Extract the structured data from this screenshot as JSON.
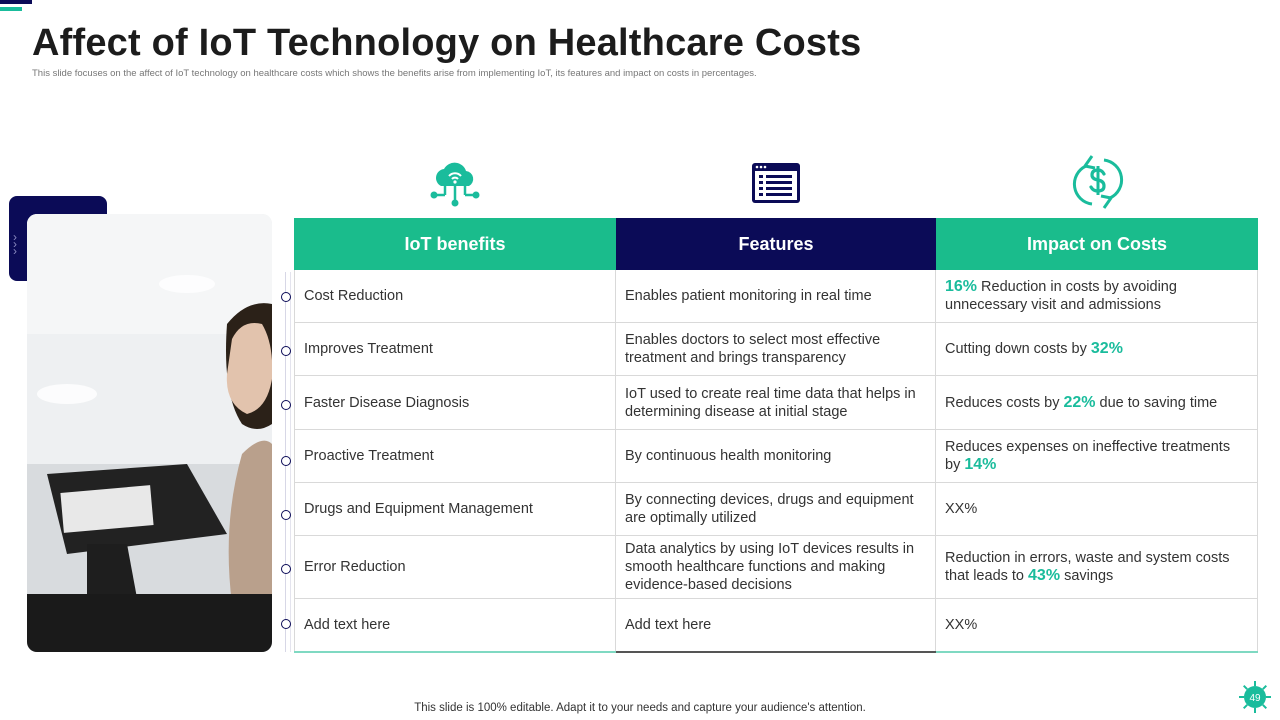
{
  "slide": {
    "title": "Affect of IoT Technology on Healthcare Costs",
    "subtitle": "This slide focuses on the affect of IoT technology on healthcare costs which shows the benefits arise from implementing IoT, its features and impact on costs in percentages.",
    "footer": "This slide is 100% editable. Adapt it to your needs and capture your audience's attention.",
    "page_number": "49",
    "accent_color": "#1abc9c",
    "navy_color": "#0b0b57"
  },
  "icons": {
    "col1": "cloud-network-icon",
    "col2": "list-window-icon",
    "col3": "dollar-cycle-icon"
  },
  "table": {
    "headers": [
      "IoT benefits",
      "Features",
      "Impact on Costs"
    ],
    "rows": [
      {
        "benefit": "Cost Reduction",
        "feature": "Enables patient monitoring in real time",
        "impact_before": "",
        "impact_pct": "16%",
        "impact_after": " Reduction in costs by avoiding unnecessary visit and admissions"
      },
      {
        "benefit": "Improves Treatment",
        "feature": "Enables doctors to select most effective treatment and brings transparency",
        "impact_before": "Cutting down costs by ",
        "impact_pct": "32%",
        "impact_after": ""
      },
      {
        "benefit": "Faster Disease Diagnosis",
        "feature": "IoT used to create real time data that helps in determining disease at initial stage",
        "impact_before": "Reduces costs by ",
        "impact_pct": "22%",
        "impact_after": " due to saving time"
      },
      {
        "benefit": "Proactive Treatment",
        "feature": "By continuous health monitoring",
        "impact_before": "Reduces expenses on ineffective treatments by ",
        "impact_pct": "14%",
        "impact_after": ""
      },
      {
        "benefit": "Drugs and Equipment Management",
        "feature": "By connecting devices, drugs and equipment are optimally utilized",
        "impact_before": "XX%",
        "impact_pct": "",
        "impact_after": ""
      },
      {
        "benefit": "Error Reduction",
        "feature": "Data analytics by using IoT devices results in smooth healthcare functions and making evidence-based decisions",
        "impact_before": "Reduction in errors, waste and system costs that leads to ",
        "impact_pct": "43%",
        "impact_after": " savings"
      },
      {
        "benefit": "Add text here",
        "feature": "Add text here",
        "impact_before": "XX%",
        "impact_pct": "",
        "impact_after": ""
      }
    ]
  }
}
